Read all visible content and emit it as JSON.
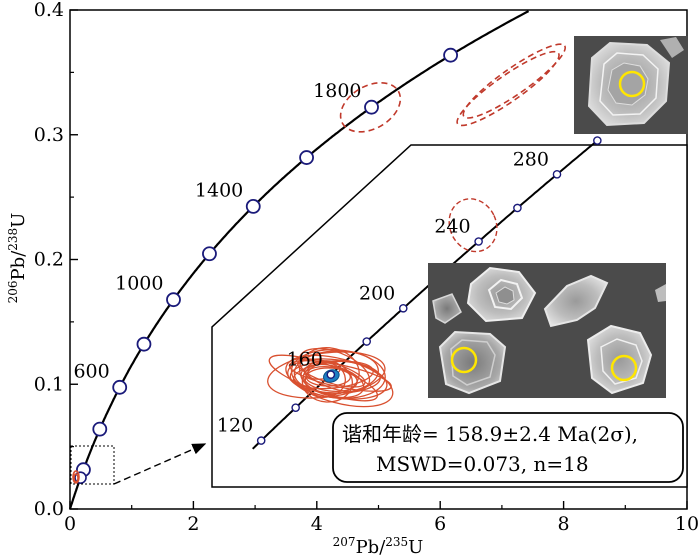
{
  "chart_data": {
    "type": "scatter",
    "title": "",
    "xlabel": {
      "pre": "207",
      "post": "Pb/",
      "pre2": "235",
      "post2": "U"
    },
    "ylabel": {
      "pre": "206",
      "post": "Pb/",
      "pre2": "238",
      "post2": "U"
    },
    "xlim": [
      0,
      10
    ],
    "ylim": [
      0,
      0.4
    ],
    "x_ticks": [
      0,
      2,
      4,
      6,
      8,
      10
    ],
    "x_tick_labels": [
      "0",
      "2",
      "4",
      "6",
      "8",
      "10"
    ],
    "y_ticks": [
      0,
      0.1,
      0.2,
      0.3,
      0.4
    ],
    "y_tick_labels": [
      "0.0",
      "0.1",
      "0.2",
      "0.3",
      "0.4"
    ],
    "concordia_age_markers_ma": [
      200,
      400,
      600,
      800,
      1000,
      1200,
      1400,
      1600,
      1800,
      2000
    ],
    "concordia_age_labels": [
      {
        "age": 600,
        "text": "600"
      },
      {
        "age": 1000,
        "text": "1000"
      },
      {
        "age": 1400,
        "text": "1400"
      },
      {
        "age": 1800,
        "text": "1800"
      }
    ],
    "main_ellipses": [
      {
        "x": 4.87,
        "y": 0.322,
        "rx": 0.55,
        "ry": 0.018,
        "angle_deg": 30
      },
      {
        "x": 7.1,
        "y": 0.337,
        "rx": 1.05,
        "ry": 0.011,
        "angle_deg": 35
      },
      {
        "x": 7.2,
        "y": 0.343,
        "rx": 1.05,
        "ry": 0.011,
        "angle_deg": 35
      }
    ],
    "inset": {
      "xlim": [
        0.1,
        0.3
      ],
      "ylim": [
        0.015,
        0.045
      ],
      "age_markers_ma": [
        120,
        140,
        160,
        180,
        200,
        220,
        240,
        260,
        280,
        300
      ],
      "age_labels": [
        {
          "age": 120,
          "text": "120"
        },
        {
          "age": 160,
          "text": "160"
        },
        {
          "age": 200,
          "text": "200"
        },
        {
          "age": 240,
          "text": "240"
        },
        {
          "age": 280,
          "text": "280"
        }
      ],
      "data_ellipses_count": 18,
      "outlier_ellipse": {
        "x": 0.263,
        "y": 0.0395,
        "rx": 0.015,
        "ry": 0.002,
        "angle_deg": 40
      },
      "concordia_mean": {
        "x": 0.171,
        "y": 0.025
      }
    },
    "result": {
      "line1": "谐和年龄= 158.9±2.4 Ma(2σ),",
      "line2": "MSWD=0.073, n=18"
    },
    "colors": {
      "concordia": "#000000",
      "marker_fill": "#ffffff",
      "marker_stroke": "#1a1a7a",
      "ellipse": "#d9502f",
      "outlier_ellipse": "#c0392b",
      "mean_fill": "#1e7fc2",
      "photo_bg": "#4b4b4b",
      "spot": "#ffe600"
    }
  }
}
